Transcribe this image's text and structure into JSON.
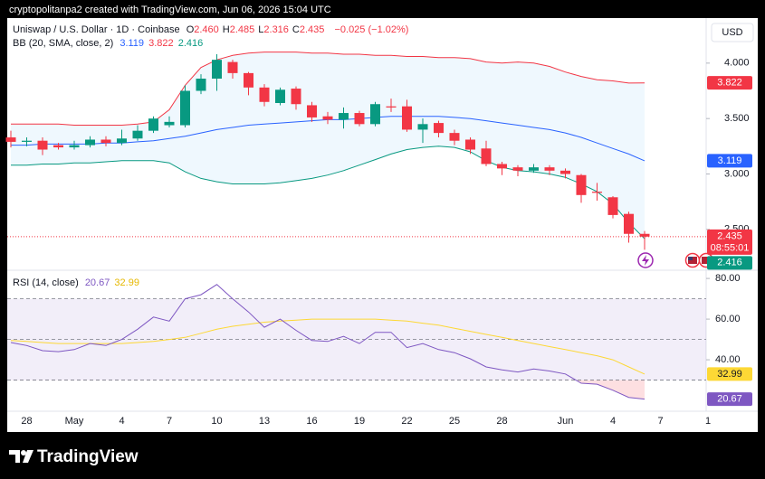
{
  "header": "cryptopolitanpa2 created with TradingView.com, Jun 06, 2026 15:04 UTC",
  "footer_brand": "TradingView",
  "chart_data": [
    {
      "type": "candlestick",
      "title": "Uniswap / U.S. Dollar · 1D · Coinbase",
      "currency": "USD",
      "ohlc": [
        {
          "key": "O",
          "text": "2.460"
        },
        {
          "key": "H",
          "text": "2.485"
        },
        {
          "key": "L",
          "text": "2.316"
        },
        {
          "key": "C",
          "text": "2.435"
        }
      ],
      "change": "−0.025 (−1.02%)",
      "categories": [
        null,
        "28",
        null,
        null,
        "May",
        null,
        null,
        "4",
        null,
        null,
        "7",
        null,
        null,
        "10",
        null,
        null,
        "13",
        null,
        null,
        "16",
        null,
        null,
        "19",
        null,
        null,
        "22",
        null,
        null,
        "25",
        null,
        null,
        "28",
        null,
        null,
        null,
        "Jun",
        null,
        null,
        "4",
        null,
        null,
        "7",
        null,
        null,
        "1"
      ],
      "open": [
        3.33,
        3.29,
        3.3,
        3.26,
        3.24,
        3.26,
        3.31,
        3.28,
        3.32,
        3.39,
        3.44,
        3.44,
        3.75,
        3.86,
        4.01,
        3.91,
        3.78,
        3.64,
        3.77,
        3.62,
        3.52,
        3.49,
        3.55,
        3.45,
        3.61,
        3.61,
        3.4,
        3.46,
        3.37,
        3.31,
        3.23,
        3.09,
        3.06,
        3.03,
        3.06,
        3.03,
        2.99,
        2.84,
        2.79,
        2.64,
        2.46,
        null,
        null,
        null,
        null
      ],
      "high": [
        3.39,
        3.33,
        3.33,
        3.28,
        3.3,
        3.34,
        3.34,
        3.4,
        3.44,
        3.52,
        3.52,
        3.8,
        3.9,
        4.08,
        4.03,
        3.92,
        3.81,
        3.78,
        3.79,
        3.65,
        3.56,
        3.6,
        3.57,
        3.65,
        3.68,
        3.67,
        3.5,
        3.48,
        3.4,
        3.33,
        3.3,
        3.11,
        3.08,
        3.09,
        3.08,
        3.05,
        3.0,
        2.92,
        2.8,
        2.66,
        2.485,
        null,
        null,
        null,
        null
      ],
      "low": [
        3.24,
        3.25,
        3.17,
        3.22,
        3.22,
        3.24,
        3.25,
        3.26,
        3.3,
        3.37,
        3.42,
        3.42,
        3.72,
        3.75,
        3.86,
        3.71,
        3.61,
        3.62,
        3.58,
        3.47,
        3.45,
        3.41,
        3.43,
        3.43,
        3.56,
        3.38,
        3.28,
        3.33,
        3.26,
        3.18,
        3.07,
        2.99,
        2.98,
        3.01,
        2.99,
        2.96,
        2.74,
        2.76,
        2.6,
        2.38,
        2.316,
        null,
        null,
        null,
        null
      ],
      "close": [
        3.29,
        3.3,
        3.22,
        3.24,
        3.26,
        3.31,
        3.28,
        3.32,
        3.39,
        3.5,
        3.47,
        3.75,
        3.86,
        4.03,
        3.91,
        3.78,
        3.65,
        3.76,
        3.63,
        3.51,
        3.49,
        3.55,
        3.45,
        3.63,
        3.6,
        3.4,
        3.45,
        3.37,
        3.3,
        3.22,
        3.09,
        3.05,
        3.03,
        3.06,
        3.03,
        3.0,
        2.81,
        2.83,
        2.63,
        2.46,
        2.435,
        null,
        null,
        null,
        null
      ],
      "up_color": "#089981",
      "down_color": "#f23645",
      "close_label": "2.435",
      "countdown": "08:55:01",
      "ylim": [
        2.14,
        4.39
      ],
      "yticks": [
        {
          "value": 2.5,
          "label": "2.500"
        },
        {
          "value": 3,
          "label": "3.000"
        },
        {
          "value": 3.5,
          "label": "3.500"
        },
        {
          "value": 4,
          "label": "4.000"
        }
      ],
      "grid": false,
      "overlay": {
        "title": "BB (20, SMA, close, 2)",
        "fill": "rgba(33,150,243,0.07)",
        "series": [
          {
            "color": "#2962ff",
            "last_label": "3.119",
            "values": [
              3.26,
              3.26,
              3.27,
              3.27,
              3.27,
              3.27,
              3.28,
              3.28,
              3.29,
              3.3,
              3.32,
              3.34,
              3.37,
              3.4,
              3.42,
              3.44,
              3.45,
              3.46,
              3.47,
              3.48,
              3.49,
              3.49,
              3.5,
              3.51,
              3.52,
              3.52,
              3.52,
              3.52,
              3.51,
              3.5,
              3.48,
              3.46,
              3.44,
              3.42,
              3.4,
              3.37,
              3.33,
              3.28,
              3.23,
              3.18,
              3.119,
              null,
              null,
              null,
              null
            ]
          },
          {
            "color": "#f23645",
            "last_label": "3.822",
            "values": [
              3.45,
              3.45,
              3.45,
              3.45,
              3.44,
              3.44,
              3.44,
              3.44,
              3.45,
              3.47,
              3.58,
              3.8,
              3.96,
              4.03,
              4.07,
              4.09,
              4.1,
              4.1,
              4.1,
              4.09,
              4.09,
              4.08,
              4.08,
              4.07,
              4.07,
              4.06,
              4.06,
              4.05,
              4.05,
              4.04,
              4.01,
              4.0,
              4.01,
              4.0,
              3.97,
              3.92,
              3.88,
              3.85,
              3.84,
              3.82,
              3.822,
              null,
              null,
              null,
              null
            ]
          },
          {
            "color": "#089981",
            "last_label": "2.416",
            "values": [
              3.08,
              3.08,
              3.09,
              3.09,
              3.1,
              3.1,
              3.11,
              3.12,
              3.12,
              3.12,
              3.1,
              3.02,
              2.96,
              2.93,
              2.91,
              2.91,
              2.91,
              2.92,
              2.94,
              2.96,
              2.99,
              3.03,
              3.08,
              3.13,
              3.18,
              3.22,
              3.24,
              3.25,
              3.24,
              3.2,
              3.12,
              3.06,
              3.03,
              3.02,
              3.0,
              2.97,
              2.91,
              2.84,
              2.73,
              2.56,
              2.416,
              null,
              null,
              null,
              null
            ]
          }
        ]
      }
    },
    {
      "type": "line",
      "title": "RSI (14, close)",
      "series": [
        {
          "color": "#7e57c2",
          "last_label": "20.67",
          "label_text_color": "#ffffff",
          "values": [
            48.5,
            47,
            44.5,
            44,
            45,
            48,
            47,
            50,
            55,
            61,
            59,
            70,
            72,
            77,
            70,
            63.5,
            56,
            60,
            54.5,
            49.5,
            49,
            51.5,
            48,
            53.5,
            53.5,
            46,
            48,
            45,
            43.5,
            40.5,
            36.5,
            35,
            34,
            35.5,
            34.5,
            33,
            28.5,
            28,
            25,
            21.5,
            20.67,
            null,
            null,
            null,
            null
          ]
        },
        {
          "color": "#fdd835",
          "last_label": "32.99",
          "label_text_color": "#131722",
          "values": [
            49.5,
            49,
            48.5,
            48,
            48,
            48,
            48,
            48,
            48.5,
            49,
            50,
            51,
            53,
            55,
            56.5,
            57.5,
            58.5,
            59,
            59.5,
            60,
            60,
            60,
            60,
            60,
            59.5,
            59,
            58,
            57,
            55.5,
            54,
            52.5,
            51,
            49.5,
            48,
            46.5,
            45,
            43.5,
            42,
            40,
            36.5,
            32.99,
            null,
            null,
            null,
            null
          ]
        }
      ],
      "ylim": [
        14.7,
        83.6
      ],
      "yticks": [
        {
          "value": 40,
          "label": "40.00"
        },
        {
          "value": 60,
          "label": "60.00"
        },
        {
          "value": 80,
          "label": "80.00"
        }
      ],
      "levels": [
        30,
        50,
        70
      ],
      "band_color": "rgba(126,87,194,0.10)",
      "oversold_color": "rgba(242,54,69,0.16)",
      "grid": false
    }
  ]
}
